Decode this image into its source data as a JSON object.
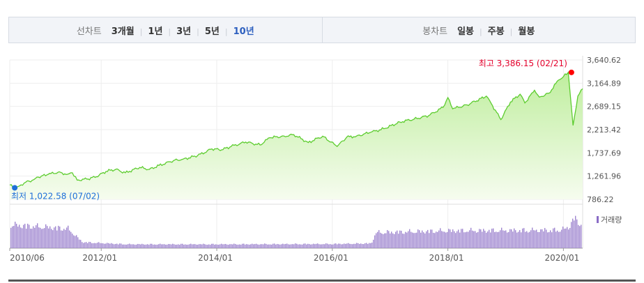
{
  "toolbar": {
    "line_group": {
      "label": "선차트",
      "options": [
        "3개월",
        "1년",
        "3년",
        "5년",
        "10년"
      ],
      "active": "10년"
    },
    "candle_group": {
      "label": "봉차트",
      "options": [
        "일봉",
        "주봉",
        "월봉"
      ],
      "active": ""
    }
  },
  "chart_data": {
    "type": "area",
    "x_range": [
      "2010-06",
      "2020-05"
    ],
    "ylim": [
      786.22,
      3640.62
    ],
    "y_ticks": [
      "3,640.62",
      "3,164.89",
      "2,689.15",
      "2,213.42",
      "1,737.69",
      "1,261.96",
      "786.22"
    ],
    "x_ticks": [
      "2010/06",
      "2012/01",
      "2014/01",
      "2016/01",
      "2018/01",
      "2020/01"
    ],
    "high": {
      "label": "최고 3,386.15 (02/21)",
      "date": "2020-02-21",
      "value": 3386.15
    },
    "low": {
      "label": "최저 1,022.58 (07/02)",
      "date": "2010-07-02",
      "value": 1022.58
    },
    "series": [
      {
        "values": [
          [
            "2010-06",
            1080
          ],
          [
            "2010-07",
            1022.58
          ],
          [
            "2010-08",
            1060
          ],
          [
            "2010-09",
            1120
          ],
          [
            "2010-10",
            1160
          ],
          [
            "2010-11",
            1190
          ],
          [
            "2010-12",
            1240
          ],
          [
            "2011-02",
            1300
          ],
          [
            "2011-04",
            1340
          ],
          [
            "2011-06",
            1300
          ],
          [
            "2011-07",
            1330
          ],
          [
            "2011-08",
            1180
          ],
          [
            "2011-10",
            1200
          ],
          [
            "2011-12",
            1250
          ],
          [
            "2012-02",
            1360
          ],
          [
            "2012-04",
            1400
          ],
          [
            "2012-06",
            1330
          ],
          [
            "2012-09",
            1440
          ],
          [
            "2012-11",
            1400
          ],
          [
            "2013-01",
            1480
          ],
          [
            "2013-04",
            1580
          ],
          [
            "2013-06",
            1610
          ],
          [
            "2013-09",
            1680
          ],
          [
            "2013-12",
            1820
          ],
          [
            "2014-02",
            1800
          ],
          [
            "2014-04",
            1870
          ],
          [
            "2014-07",
            1960
          ],
          [
            "2014-10",
            1900
          ],
          [
            "2014-12",
            2050
          ],
          [
            "2015-03",
            2080
          ],
          [
            "2015-05",
            2110
          ],
          [
            "2015-08",
            1950
          ],
          [
            "2015-11",
            2080
          ],
          [
            "2016-02",
            1870
          ],
          [
            "2016-04",
            2060
          ],
          [
            "2016-06",
            2080
          ],
          [
            "2016-09",
            2160
          ],
          [
            "2016-12",
            2240
          ],
          [
            "2017-03",
            2370
          ],
          [
            "2017-06",
            2430
          ],
          [
            "2017-09",
            2500
          ],
          [
            "2017-12",
            2670
          ],
          [
            "2018-01",
            2870
          ],
          [
            "2018-02",
            2640
          ],
          [
            "2018-05",
            2720
          ],
          [
            "2018-09",
            2900
          ],
          [
            "2018-10",
            2750
          ],
          [
            "2018-12",
            2420
          ],
          [
            "2019-02",
            2780
          ],
          [
            "2019-04",
            2940
          ],
          [
            "2019-05",
            2760
          ],
          [
            "2019-07",
            3020
          ],
          [
            "2019-08",
            2880
          ],
          [
            "2019-10",
            2960
          ],
          [
            "2019-12",
            3230
          ],
          [
            "2020-01",
            3300
          ],
          [
            "2020-02",
            3386.15
          ],
          [
            "2020-03",
            2300
          ],
          [
            "2020-04",
            2900
          ],
          [
            "2020-05",
            3050
          ]
        ]
      }
    ],
    "volume": {
      "label": "거래량",
      "levels": [
        [
          "2010-06",
          0.78
        ],
        [
          "2011-06",
          0.65
        ],
        [
          "2011-09",
          0.2
        ],
        [
          "2012-06",
          0.13
        ],
        [
          "2014-01",
          0.13
        ],
        [
          "2016-01",
          0.14
        ],
        [
          "2016-09",
          0.16
        ],
        [
          "2016-10",
          0.52
        ],
        [
          "2018-01",
          0.58
        ],
        [
          "2019-12",
          0.6
        ],
        [
          "2020-02",
          0.68
        ],
        [
          "2020-03",
          1.0
        ],
        [
          "2020-05",
          0.75
        ]
      ]
    }
  }
}
